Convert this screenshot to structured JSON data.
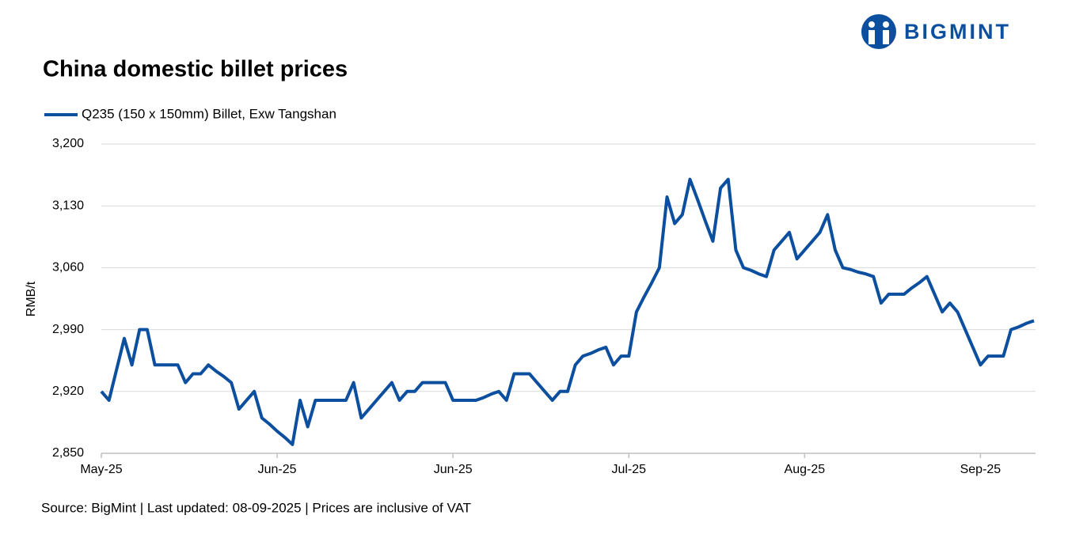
{
  "chart_data": {
    "type": "line",
    "title": "China domestic billet prices",
    "brand": "BIGMINT",
    "source": "Source: BigMint | Last updated: 08-09-2025 | Prices are inclusive of VAT",
    "ylabel": "RMB/t",
    "categories": [
      "May-25",
      null,
      null,
      null,
      null,
      null,
      null,
      null,
      null,
      null,
      null,
      null,
      null,
      null,
      null,
      null,
      null,
      null,
      null,
      null,
      null,
      null,
      null,
      "Jun-25",
      null,
      null,
      null,
      null,
      null,
      null,
      null,
      null,
      null,
      null,
      null,
      null,
      null,
      null,
      null,
      null,
      null,
      null,
      null,
      null,
      null,
      null,
      "Jun-25",
      null,
      null,
      null,
      null,
      null,
      null,
      null,
      null,
      null,
      null,
      null,
      null,
      null,
      null,
      null,
      null,
      null,
      null,
      null,
      null,
      null,
      null,
      "Jul-25",
      null,
      null,
      null,
      null,
      null,
      null,
      null,
      null,
      null,
      null,
      null,
      null,
      null,
      null,
      null,
      null,
      null,
      null,
      null,
      null,
      null,
      null,
      "Aug-25",
      null,
      null,
      null,
      null,
      null,
      null,
      null,
      null,
      null,
      null,
      null,
      null,
      null,
      null,
      null,
      null,
      null,
      null,
      null,
      null,
      null,
      null,
      "Sep-25",
      null,
      null,
      null,
      null,
      null,
      null,
      null
    ],
    "series": [
      {
        "name": "Q235 (150 x 150mm) Billet, Exw Tangshan",
        "color": "#0b4f9e",
        "values": [
          2920,
          2910,
          2945,
          2980,
          2950,
          2990,
          2990,
          2950,
          2950,
          2950,
          2950,
          2930,
          2940,
          2940,
          2950,
          2943,
          2937,
          2930,
          2900,
          2910,
          2920,
          2890,
          2883,
          2875,
          2868,
          2860,
          2910,
          2880,
          2910,
          2910,
          2910,
          2910,
          2910,
          2930,
          2890,
          2900,
          2910,
          2920,
          2930,
          2910,
          2920,
          2920,
          2930,
          2930,
          2930,
          2930,
          2910,
          2910,
          2910,
          2910,
          2913,
          2917,
          2920,
          2910,
          2940,
          2940,
          2940,
          2930,
          2920,
          2910,
          2920,
          2920,
          2950,
          2960,
          2963,
          2967,
          2970,
          2950,
          2960,
          2960,
          3010,
          3027,
          3043,
          3060,
          3140,
          3110,
          3120,
          3160,
          3137,
          3113,
          3090,
          3150,
          3160,
          3080,
          3060,
          3057,
          3053,
          3050,
          3080,
          3090,
          3100,
          3070,
          3080,
          3090,
          3100,
          3120,
          3080,
          3060,
          3058,
          3055,
          3053,
          3050,
          3020,
          3030,
          3030,
          3030,
          3037,
          3043,
          3050,
          3030,
          3010,
          3020,
          3010,
          2990,
          2970,
          2950,
          2960,
          2960,
          2960,
          2990,
          2993,
          2997,
          3000
        ]
      }
    ],
    "ylim": [
      2850,
      3200
    ],
    "yticks": [
      {
        "value": 2850,
        "label": "2,850"
      },
      {
        "value": 2920,
        "label": "2,920"
      },
      {
        "value": 2990,
        "label": "2,990"
      },
      {
        "value": 3060,
        "label": "3,060"
      },
      {
        "value": 3130,
        "label": "3,130"
      },
      {
        "value": 3200,
        "label": "3,200"
      }
    ],
    "grid": true,
    "legend": "top-left"
  }
}
